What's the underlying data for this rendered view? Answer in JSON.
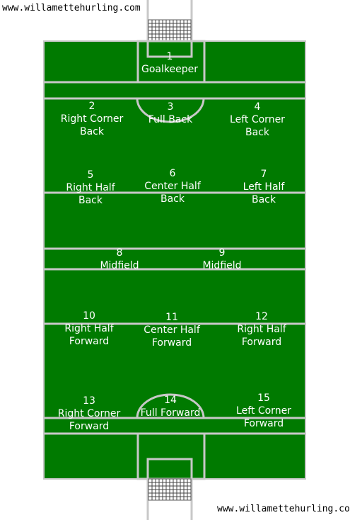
{
  "website": {
    "top": "www.willamettehurling.com",
    "bottom": "www.willamettehurling.com"
  },
  "colors": {
    "field": "#007a00",
    "lines": "#c8c8c8",
    "text": "#ffffff"
  },
  "positions": [
    {
      "num": "1",
      "name": "Goalkeeper"
    },
    {
      "num": "2",
      "name": "Right Corner\nBack"
    },
    {
      "num": "3",
      "name": "Full Back"
    },
    {
      "num": "4",
      "name": "Left Corner\nBack"
    },
    {
      "num": "5",
      "name": "Right Half\nBack"
    },
    {
      "num": "6",
      "name": "Center Half\nBack"
    },
    {
      "num": "7",
      "name": "Left Half\nBack"
    },
    {
      "num": "8",
      "name": "Midfield"
    },
    {
      "num": "9",
      "name": "Midfield"
    },
    {
      "num": "10",
      "name": "Right Half\nForward"
    },
    {
      "num": "11",
      "name": "Center Half\nForward"
    },
    {
      "num": "12",
      "name": "Right Half\nForward"
    },
    {
      "num": "13",
      "name": "Right Corner\nForward"
    },
    {
      "num": "14",
      "name": "Full Forward"
    },
    {
      "num": "15",
      "name": "Left Corner\nForward"
    }
  ]
}
